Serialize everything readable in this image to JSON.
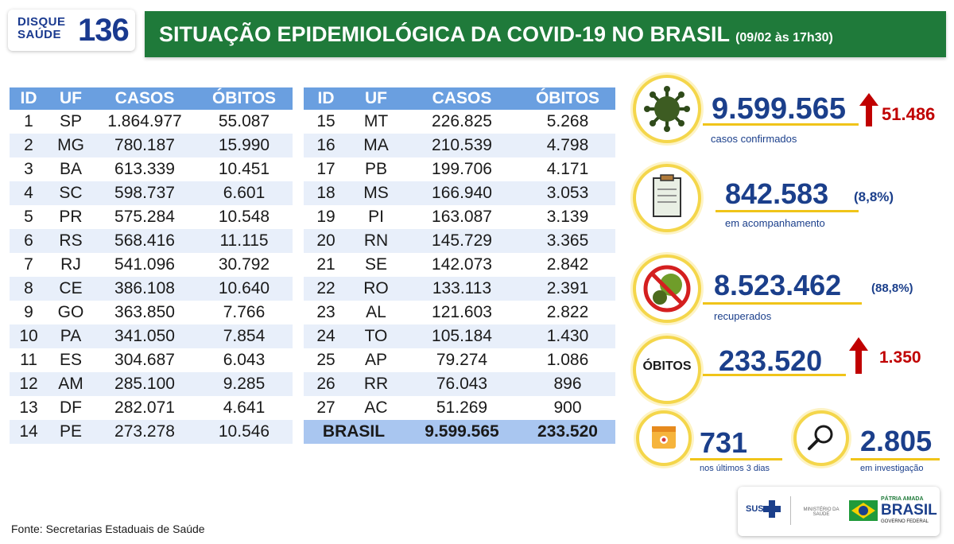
{
  "header": {
    "logo_disque": "DISQUE",
    "logo_saude": "SAÚDE",
    "logo_number": "136",
    "title": "SITUAÇÃO EPIDEMIOLÓGICA DA COVID-19 NO BRASIL",
    "date": "(09/02 às 17h30)"
  },
  "table": {
    "headers": [
      "ID",
      "UF",
      "CASOS",
      "ÓBITOS"
    ],
    "left_rows": [
      [
        "1",
        "SP",
        "1.864.977",
        "55.087"
      ],
      [
        "2",
        "MG",
        "780.187",
        "15.990"
      ],
      [
        "3",
        "BA",
        "613.339",
        "10.451"
      ],
      [
        "4",
        "SC",
        "598.737",
        "6.601"
      ],
      [
        "5",
        "PR",
        "575.284",
        "10.548"
      ],
      [
        "6",
        "RS",
        "568.416",
        "11.115"
      ],
      [
        "7",
        "RJ",
        "541.096",
        "30.792"
      ],
      [
        "8",
        "CE",
        "386.108",
        "10.640"
      ],
      [
        "9",
        "GO",
        "363.850",
        "7.766"
      ],
      [
        "10",
        "PA",
        "341.050",
        "7.854"
      ],
      [
        "11",
        "ES",
        "304.687",
        "6.043"
      ],
      [
        "12",
        "AM",
        "285.100",
        "9.285"
      ],
      [
        "13",
        "DF",
        "282.071",
        "4.641"
      ],
      [
        "14",
        "PE",
        "273.278",
        "10.546"
      ]
    ],
    "right_rows": [
      [
        "15",
        "MT",
        "226.825",
        "5.268"
      ],
      [
        "16",
        "MA",
        "210.539",
        "4.798"
      ],
      [
        "17",
        "PB",
        "199.706",
        "4.171"
      ],
      [
        "18",
        "MS",
        "166.940",
        "3.053"
      ],
      [
        "19",
        "PI",
        "163.087",
        "3.139"
      ],
      [
        "20",
        "RN",
        "145.729",
        "3.365"
      ],
      [
        "21",
        "SE",
        "142.073",
        "2.842"
      ],
      [
        "22",
        "RO",
        "133.113",
        "2.391"
      ],
      [
        "23",
        "AL",
        "121.603",
        "2.822"
      ],
      [
        "24",
        "TO",
        "105.184",
        "1.430"
      ],
      [
        "25",
        "AP",
        "79.274",
        "1.086"
      ],
      [
        "26",
        "RR",
        "76.043",
        "896"
      ],
      [
        "27",
        "AC",
        "51.269",
        "900"
      ]
    ],
    "total": {
      "label": "BRASIL",
      "cases": "9.599.565",
      "deaths": "233.520"
    }
  },
  "stats": {
    "confirmed": {
      "value": "9.599.565",
      "delta": "51.486",
      "label": "casos confirmados",
      "icon": "virus-icon"
    },
    "monitoring": {
      "value": "842.583",
      "pct": "(8,8%)",
      "label": "em acompanhamento",
      "icon": "clipboard-icon"
    },
    "recovered": {
      "value": "8.523.462",
      "pct": "(88,8%)",
      "label": "recuperados",
      "icon": "no-virus-icon"
    },
    "deaths": {
      "badge": "ÓBITOS",
      "value": "233.520",
      "delta": "1.350"
    },
    "recent": {
      "value": "731",
      "label": "nos últimos 3 dias",
      "icon": "calendar-icon"
    },
    "investigation": {
      "value": "2.805",
      "label": "em investigação",
      "icon": "magnifier-icon"
    }
  },
  "footer": {
    "source": "Fonte: Secretarias Estaduais de Saúde",
    "sus": "SUS",
    "ministerio": "MINISTÉRIO DA SAÚDE",
    "patria": "PÁTRIA AMADA",
    "brasil": "BRASIL",
    "gov": "GOVERNO FEDERAL"
  },
  "colors": {
    "green": "#1f7a3a",
    "blue": "#1b3f8b",
    "header_blue": "#6a9fe0",
    "red": "#c00000",
    "yellow": "#f4d64b"
  }
}
